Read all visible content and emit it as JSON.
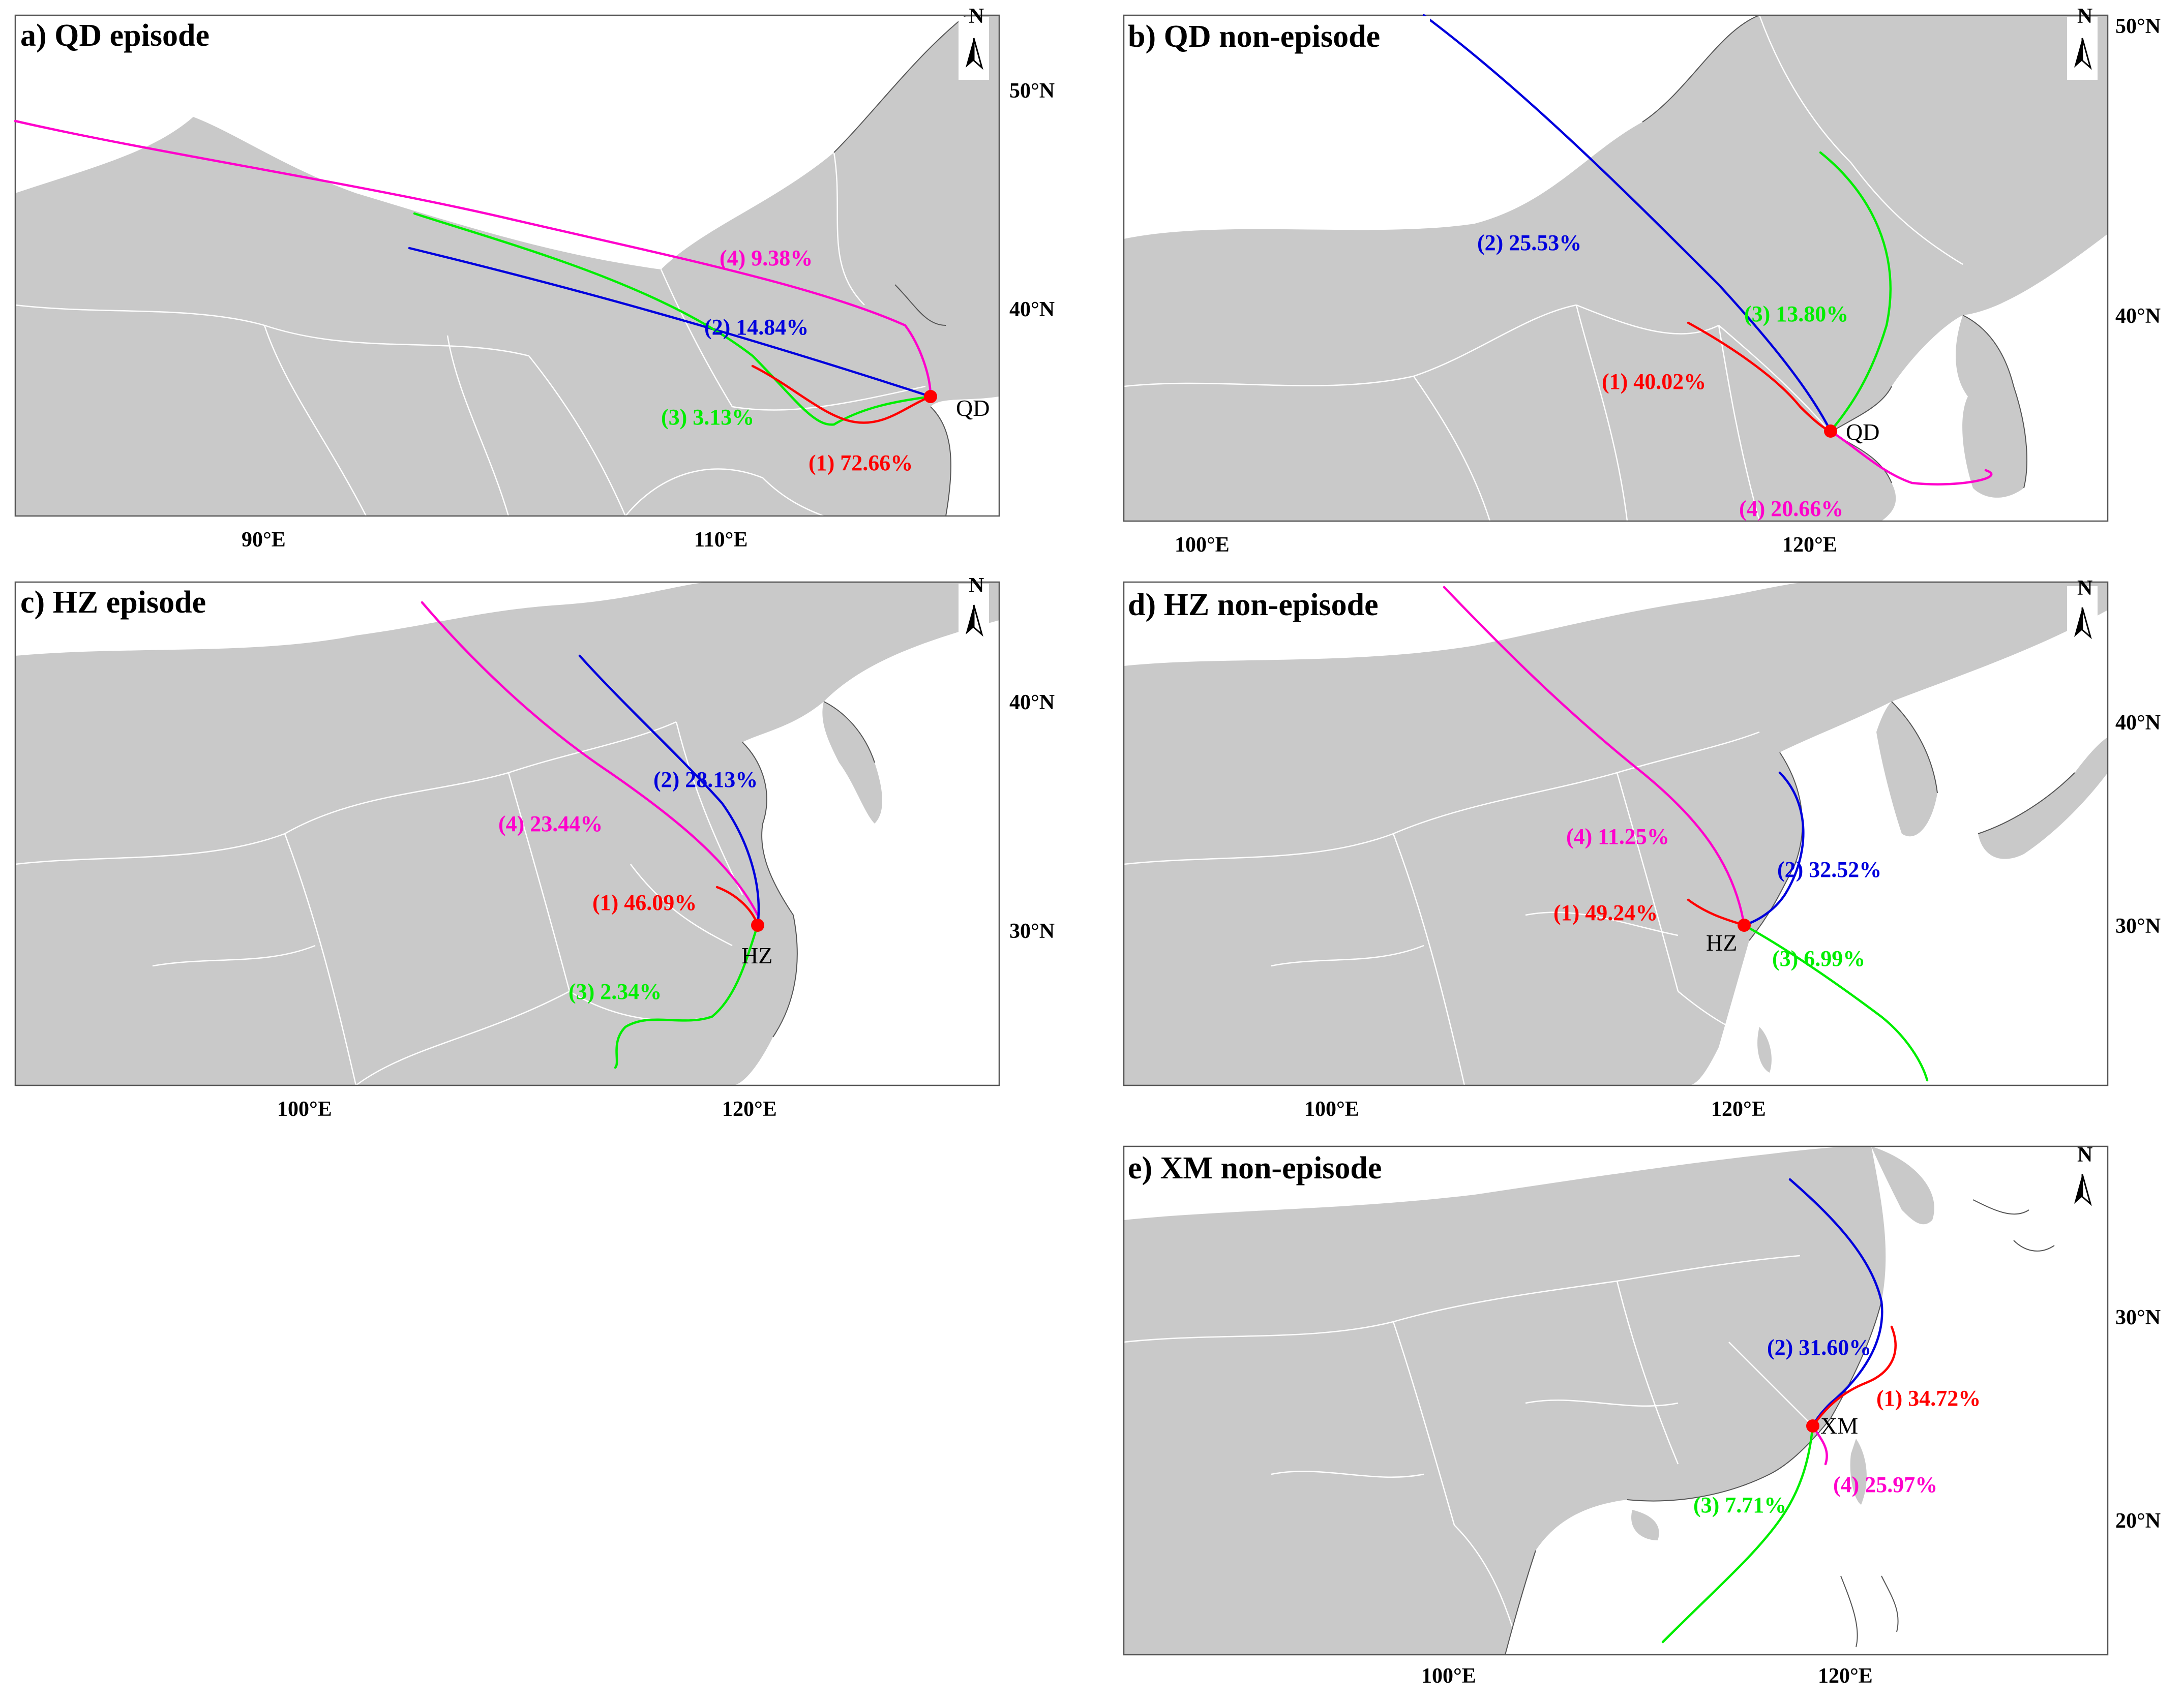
{
  "colors": {
    "traj1": "#ff0000",
    "traj2": "#0000dd",
    "traj3": "#00ee00",
    "traj4": "#ff00cc",
    "land": "#c9c9c9",
    "site": "#ff0000"
  },
  "icons": {
    "north_arrow": "north-arrow-icon",
    "site": "site-dot-icon"
  },
  "panels": {
    "a": {
      "title": "a) QD episode",
      "site": "QD",
      "lon_ticks": [
        "90°E",
        "110°E"
      ],
      "lat_ticks": [
        "50°N",
        "40°N"
      ],
      "north": "N",
      "labels": [
        "(1) 72.66%",
        "(2) 14.84%",
        "(3) 3.13%",
        "(4) 9.38%"
      ]
    },
    "b": {
      "title": "b) QD non-episode",
      "site": "QD",
      "lon_ticks": [
        "100°E",
        "120°E"
      ],
      "lat_ticks": [
        "50°N",
        "40°N"
      ],
      "north": "N",
      "labels": [
        "(1) 40.02%",
        "(2) 25.53%",
        "(3) 13.80%",
        "(4) 20.66%"
      ]
    },
    "c": {
      "title": "c) HZ  episode",
      "site": "HZ",
      "lon_ticks": [
        "100°E",
        "120°E"
      ],
      "lat_ticks": [
        "40°N",
        "30°N"
      ],
      "north": "N",
      "labels": [
        "(1) 46.09%",
        "(2) 28.13%",
        "(3) 2.34%",
        "(4) 23.44%"
      ]
    },
    "d": {
      "title": "d) HZ  non-episode",
      "site": "HZ",
      "lon_ticks": [
        "100°E",
        "120°E"
      ],
      "lat_ticks": [
        "40°N",
        "30°N"
      ],
      "north": "N",
      "labels": [
        "(1) 49.24%",
        "(2) 32.52%",
        "(3) 6.99%",
        "(4) 11.25%"
      ]
    },
    "e": {
      "title": "e) XM  non-episode",
      "site": "XM",
      "lon_ticks": [
        "100°E",
        "120°E"
      ],
      "lat_ticks": [
        "30°N",
        "20°N"
      ],
      "north": "N",
      "labels": [
        "(1) 34.72%",
        "(2) 31.60%",
        "(3) 7.71%",
        "(4) 25.97%"
      ]
    }
  }
}
